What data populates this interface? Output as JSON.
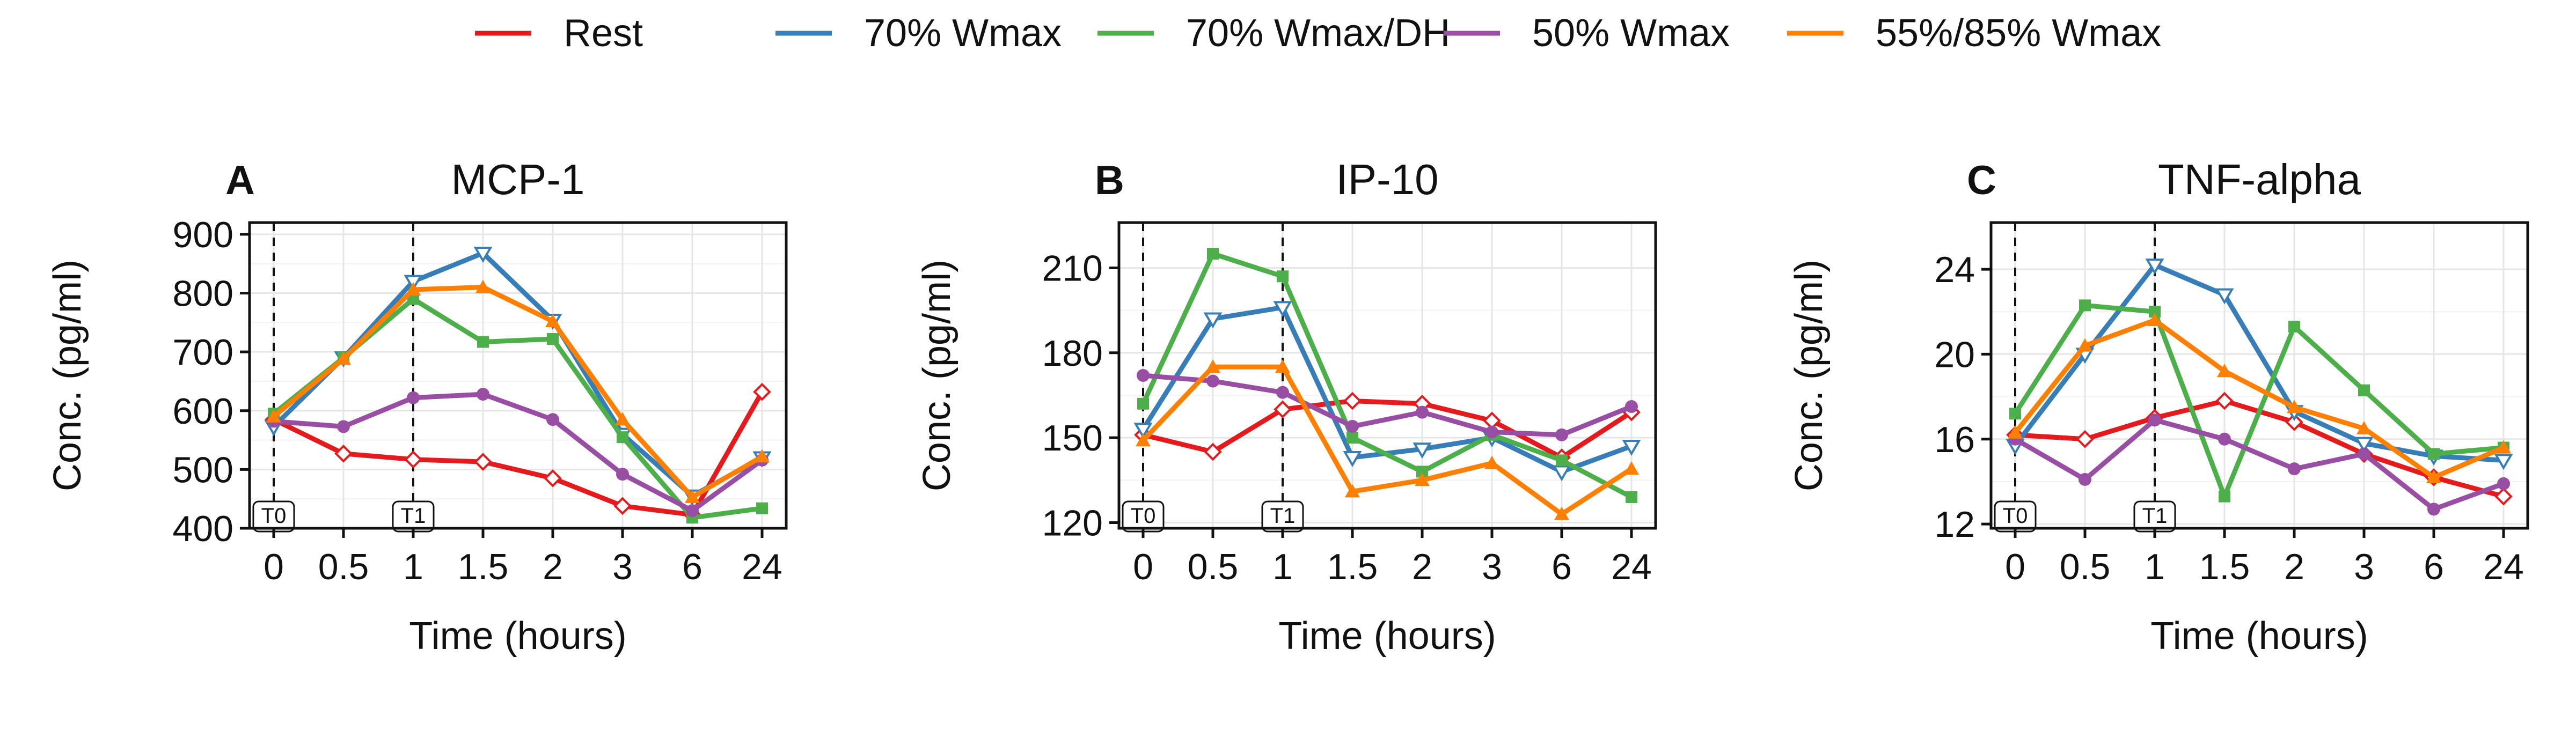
{
  "legend": {
    "placement": "top",
    "entries": [
      {
        "name": "Rest",
        "color": "#E41A1C"
      },
      {
        "name": "70% Wmax",
        "color": "#377EB8"
      },
      {
        "name": "70% Wmax/DH",
        "color": "#4DAF4A"
      },
      {
        "name": "50% Wmax",
        "color": "#984EA3"
      },
      {
        "name": "55%/85% Wmax",
        "color": "#FF7F00"
      }
    ]
  },
  "chart_data": [
    {
      "type": "line",
      "panel_letter": "A",
      "title": "MCP-1",
      "xlabel": "Time (hours)",
      "ylabel": "Conc. (pg/ml)",
      "categories": [
        "0",
        "0.5",
        "1",
        "1.5",
        "2",
        "3",
        "6",
        "24"
      ],
      "ylim": [
        400,
        920
      ],
      "yticks": [
        400,
        500,
        600,
        700,
        800,
        900
      ],
      "grid": true,
      "markers": [
        {
          "label": "T0",
          "at": "0"
        },
        {
          "label": "T1",
          "at": "1"
        }
      ],
      "series": [
        {
          "name": "Rest",
          "values": [
            585,
            527,
            517,
            513,
            485,
            438,
            423,
            632
          ]
        },
        {
          "name": "70% Wmax",
          "values": [
            573,
            690,
            820,
            868,
            754,
            560,
            455,
            520
          ]
        },
        {
          "name": "70% Wmax/DH",
          "values": [
            595,
            690,
            790,
            717,
            722,
            555,
            418,
            434
          ]
        },
        {
          "name": "50% Wmax",
          "values": [
            582,
            573,
            622,
            628,
            585,
            492,
            430,
            516
          ]
        },
        {
          "name": "55%/85% Wmax",
          "values": [
            590,
            688,
            806,
            810,
            752,
            585,
            453,
            522
          ]
        }
      ]
    },
    {
      "type": "line",
      "panel_letter": "B",
      "title": "IP-10",
      "xlabel": "Time (hours)",
      "ylabel": "Conc. (pg/ml)",
      "categories": [
        "0",
        "0.5",
        "1",
        "1.5",
        "2",
        "3",
        "6",
        "24"
      ],
      "ylim": [
        118,
        226
      ],
      "yticks": [
        120,
        150,
        180,
        210
      ],
      "grid": true,
      "markers": [
        {
          "label": "T0",
          "at": "0"
        },
        {
          "label": "T1",
          "at": "1"
        }
      ],
      "series": [
        {
          "name": "Rest",
          "values": [
            151,
            145,
            160,
            163,
            162,
            156,
            143,
            159
          ]
        },
        {
          "name": "70% Wmax",
          "values": [
            153,
            192,
            196,
            143,
            146,
            150,
            138,
            147
          ]
        },
        {
          "name": "70% Wmax/DH",
          "values": [
            162,
            215,
            207,
            150,
            138,
            151,
            142,
            129
          ]
        },
        {
          "name": "50% Wmax",
          "values": [
            172,
            170,
            166,
            154,
            159,
            152,
            151,
            161
          ]
        },
        {
          "name": "55%/85% Wmax",
          "values": [
            149,
            175,
            175,
            131,
            135,
            141,
            123,
            139
          ]
        }
      ]
    },
    {
      "type": "line",
      "panel_letter": "C",
      "title": "TNF-alpha",
      "xlabel": "Time (hours)",
      "ylabel": "Conc. (pg/ml)",
      "categories": [
        "0",
        "0.5",
        "1",
        "1.5",
        "2",
        "3",
        "6",
        "24"
      ],
      "ylim": [
        11.8,
        26.2
      ],
      "yticks": [
        12,
        16,
        20,
        24
      ],
      "grid": true,
      "markers": [
        {
          "label": "T0",
          "at": "0"
        },
        {
          "label": "T1",
          "at": "1"
        }
      ],
      "series": [
        {
          "name": "Rest",
          "values": [
            16.2,
            16.0,
            17.0,
            17.8,
            16.8,
            15.3,
            14.2,
            13.3
          ]
        },
        {
          "name": "70% Wmax",
          "values": [
            15.7,
            20.0,
            24.2,
            22.8,
            17.3,
            15.8,
            15.2,
            15.0
          ]
        },
        {
          "name": "70% Wmax/DH",
          "values": [
            17.2,
            22.3,
            22.0,
            13.3,
            21.3,
            18.3,
            15.3,
            15.6
          ]
        },
        {
          "name": "50% Wmax",
          "values": [
            16.0,
            14.1,
            16.9,
            16.0,
            14.6,
            15.3,
            12.7,
            13.9
          ]
        },
        {
          "name": "55%/85% Wmax",
          "values": [
            16.3,
            20.4,
            21.6,
            19.2,
            17.5,
            16.5,
            14.2,
            15.6
          ]
        }
      ]
    }
  ]
}
